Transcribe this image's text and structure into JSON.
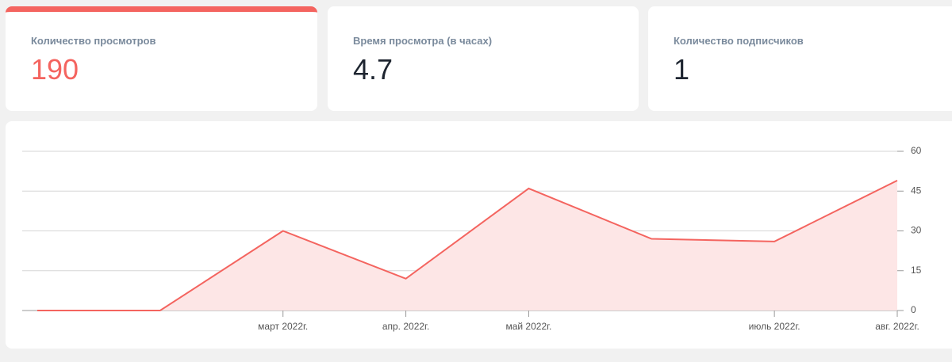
{
  "cards": [
    {
      "label": "Количество просмотров",
      "value": 190
    },
    {
      "label": "Время просмотра (в часах)",
      "value": 4.7
    },
    {
      "label": "Количество подписчиков",
      "value": 1
    }
  ],
  "chart_data": {
    "type": "area",
    "categories": [
      null,
      null,
      "март 2022г.",
      "апр. 2022г.",
      "май 2022г.",
      null,
      "июль 2022г.",
      "авг. 2022г."
    ],
    "values": [
      0,
      0,
      30,
      12,
      46,
      27,
      26,
      49
    ],
    "color": "#f4645f",
    "fill": "#fde6e6",
    "ylim": [
      0,
      60
    ],
    "yticks": [
      0,
      15,
      30,
      45,
      60
    ],
    "grid": true
  }
}
